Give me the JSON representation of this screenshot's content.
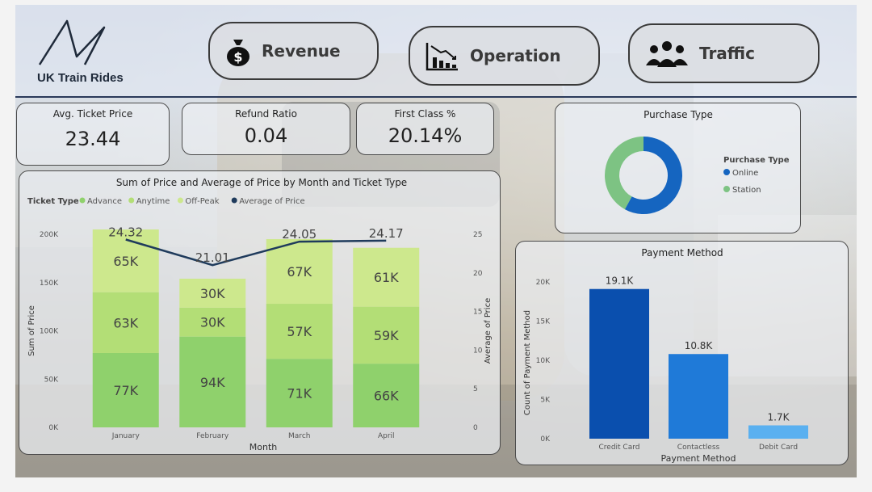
{
  "header": {
    "logo_text": "UK Train Rides",
    "nav": [
      {
        "label": "Revenue",
        "icon": "money-bag-icon"
      },
      {
        "label": "Operation",
        "icon": "chart-down-icon"
      },
      {
        "label": "Traffic",
        "icon": "people-icon"
      }
    ]
  },
  "kpis": [
    {
      "label": "Avg. Ticket Price",
      "value": "23.44"
    },
    {
      "label": "Refund Ratio",
      "value": "0.04"
    },
    {
      "label": "First Class %",
      "value": "20.14%"
    }
  ],
  "chart_data": [
    {
      "type": "bar",
      "subtype": "stacked-bar-with-line",
      "title": "Sum of Price and Average of Price by Month and Ticket Type",
      "legend_title": "Ticket Type",
      "categories": [
        "January",
        "February",
        "March",
        "April"
      ],
      "series": [
        {
          "name": "Advance",
          "values": [
            77,
            94,
            71,
            66
          ],
          "labels": [
            "77K",
            "94K",
            "71K",
            "66K"
          ],
          "color": "#8fd16c"
        },
        {
          "name": "Anytime",
          "values": [
            63,
            30,
            57,
            59
          ],
          "labels": [
            "63K",
            "30K",
            "57K",
            "59K"
          ],
          "color": "#b3de76"
        },
        {
          "name": "Off-Peak",
          "values": [
            65,
            30,
            67,
            61
          ],
          "labels": [
            "65K",
            "30K",
            "67K",
            "61K"
          ],
          "color": "#cde88d"
        }
      ],
      "line": {
        "name": "Average of Price",
        "values": [
          24.32,
          21.01,
          24.05,
          24.17
        ],
        "labels": [
          "24.32",
          "21.01",
          "24.05",
          "24.17"
        ],
        "color": "#1f3b5c"
      },
      "xlabel": "Month",
      "ylabel": "Sum of Price",
      "y2label": "Average of Price",
      "ylim": [
        0,
        200
      ],
      "yticks": [
        "0K",
        "50K",
        "100K",
        "150K",
        "200K"
      ],
      "y2lim": [
        0,
        25
      ],
      "y2ticks": [
        "0",
        "5",
        "10",
        "15",
        "20",
        "25"
      ],
      "legend_position": "top-left"
    },
    {
      "type": "pie",
      "subtype": "donut",
      "title": "Purchase Type",
      "legend_title": "Purchase Type",
      "categories": [
        "Online",
        "Station"
      ],
      "values": [
        58,
        42
      ],
      "colors": [
        "#1565c0",
        "#7dc383"
      ],
      "legend_position": "right"
    },
    {
      "type": "bar",
      "title": "Payment Method",
      "categories": [
        "Credit Card",
        "Contactless",
        "Debit Card"
      ],
      "values": [
        19.1,
        10.8,
        1.7
      ],
      "labels": [
        "19.1K",
        "10.8K",
        "1.7K"
      ],
      "colors": [
        "#0a4fae",
        "#1f7ad8",
        "#5ab0f0"
      ],
      "xlabel": "Payment Method",
      "ylabel": "Count of Payment Method",
      "ylim": [
        0,
        20
      ],
      "yticks": [
        "0K",
        "5K",
        "10K",
        "15K",
        "20K"
      ]
    }
  ]
}
